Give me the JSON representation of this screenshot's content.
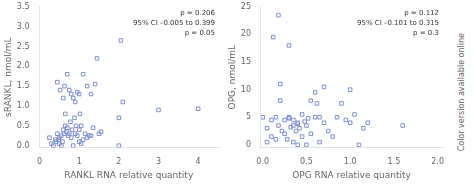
{
  "chart_data": [
    {
      "type": "scatter",
      "xlabel": "RANKL RNA relative quantity",
      "ylabel": "sRANKL, nmol/mL",
      "x": [
        0.25,
        0.3,
        0.35,
        0.4,
        0.42,
        0.45,
        0.45,
        0.48,
        0.5,
        0.5,
        0.52,
        0.55,
        0.55,
        0.58,
        0.6,
        0.6,
        0.62,
        0.63,
        0.65,
        0.65,
        0.68,
        0.7,
        0.7,
        0.72,
        0.75,
        0.75,
        0.78,
        0.8,
        0.8,
        0.82,
        0.85,
        0.85,
        0.88,
        0.9,
        0.9,
        0.92,
        0.95,
        0.95,
        1.0,
        1.0,
        1.0,
        1.02,
        1.05,
        1.05,
        1.1,
        1.1,
        1.15,
        1.2,
        1.2,
        1.25,
        1.3,
        1.3,
        1.35,
        1.4,
        1.45,
        1.5,
        1.55,
        2.0,
        2.0,
        2.05,
        2.1,
        3.0,
        4.0
      ],
      "values": [
        0.2,
        0.05,
        0.0,
        0.15,
        0.1,
        1.6,
        0.3,
        0.15,
        0.05,
        0.2,
        1.4,
        0.0,
        0.25,
        0.1,
        1.2,
        0.4,
        0.3,
        1.5,
        0.5,
        0.8,
        0.35,
        0.45,
        1.8,
        0.25,
        0.3,
        1.4,
        0.6,
        0.2,
        1.3,
        0.4,
        0.0,
        1.2,
        0.7,
        0.3,
        1.1,
        0.5,
        0.25,
        1.35,
        0.1,
        0.4,
        1.3,
        0.8,
        0.05,
        0.5,
        0.15,
        1.8,
        0.3,
        0.2,
        1.5,
        0.25,
        0.25,
        1.3,
        0.45,
        1.55,
        2.2,
        0.3,
        0.35,
        0.0,
        0.7,
        2.65,
        1.1,
        0.9,
        0.93
      ],
      "color": "#8090cc",
      "marker": "square",
      "xlim": [
        0,
        4.5
      ],
      "ylim": [
        -0.05,
        3.5
      ],
      "xticks": [
        0,
        1,
        2,
        3,
        4
      ],
      "yticks": [
        {
          "value": 0,
          "label": "0.0"
        },
        0.5,
        {
          "value": 1,
          "label": "1.0"
        },
        1.5,
        {
          "value": 2,
          "label": "2.0"
        },
        2.5,
        {
          "value": 3,
          "label": "3.0"
        },
        3.5
      ],
      "grid": false,
      "annotations": [
        "p = 0.206\n95% CI –0.005 to 0.399\np = 0.05"
      ]
    },
    {
      "type": "scatter",
      "xlabel": "OPG RNA relative quantity",
      "ylabel": "OPG, nmol/mL",
      "x": [
        0.0,
        0.05,
        0.05,
        0.1,
        0.1,
        0.12,
        0.15,
        0.15,
        0.18,
        0.2,
        0.2,
        0.22,
        0.25,
        0.25,
        0.28,
        0.3,
        0.3,
        0.3,
        0.32,
        0.35,
        0.35,
        0.35,
        0.38,
        0.4,
        0.4,
        0.4,
        0.42,
        0.45,
        0.45,
        0.48,
        0.5,
        0.5,
        0.52,
        0.55,
        0.55,
        0.6,
        0.6,
        0.62,
        0.65,
        0.65,
        0.7,
        0.7,
        0.75,
        0.8,
        0.85,
        0.9,
        0.95,
        1.0,
        1.0,
        1.05,
        1.1,
        1.15,
        1.2,
        1.6,
        0.18
      ],
      "values": [
        5.0,
        3.0,
        0.5,
        4.5,
        1.5,
        19.5,
        5.0,
        1.0,
        3.5,
        11.0,
        8.0,
        2.5,
        4.5,
        2.0,
        1.0,
        5.0,
        18.0,
        4.8,
        3.2,
        4.5,
        3.5,
        0.5,
        2.5,
        4.0,
        3.8,
        0.0,
        3.0,
        5.5,
        1.5,
        4.2,
        0.0,
        3.5,
        4.8,
        2.0,
        8.0,
        5.0,
        9.5,
        7.5,
        0.5,
        5.0,
        4.0,
        10.5,
        2.5,
        1.5,
        5.0,
        7.5,
        4.5,
        4.0,
        10.0,
        5.5,
        0.0,
        3.0,
        4.0,
        3.5,
        23.5
      ],
      "color": "#8090cc",
      "marker": "square",
      "xlim": [
        -0.02,
        2.05
      ],
      "ylim": [
        -0.5,
        25
      ],
      "xticks": [
        {
          "value": 0,
          "label": "0.0"
        },
        0.5,
        {
          "value": 1,
          "label": "1.0"
        },
        1.5,
        {
          "value": 2,
          "label": "2.0"
        }
      ],
      "yticks": [
        0,
        5,
        10,
        15,
        20,
        25
      ],
      "grid": false,
      "annotations": [
        "p = 0.112\n95% CI –0.101 to 0.315\np = 0.3",
        "Color version available online"
      ]
    }
  ]
}
